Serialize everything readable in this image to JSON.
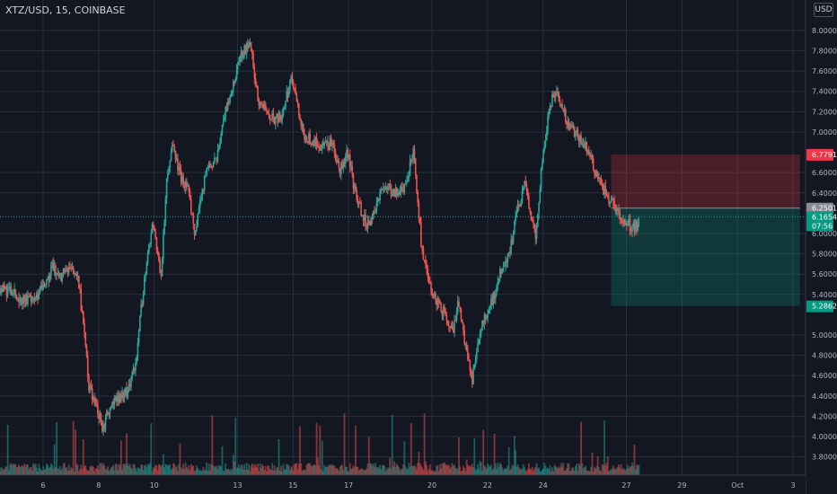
{
  "header": {
    "title": "XTZ/USD, 15, COINBASE",
    "currency": "USD"
  },
  "colors": {
    "background": "#131722",
    "grid": "#2a2e39",
    "text": "#b2b5be",
    "up": "#26a69a",
    "down": "#ef5350",
    "stop_zone": "rgba(242,54,69,0.25)",
    "target_zone": "rgba(8,153,129,0.25)",
    "stop_label": "#f23645",
    "entry_label": "#8a8d97",
    "current_label": "#089981",
    "target_label": "#089981"
  },
  "chart_data": {
    "type": "candlestick",
    "y_axis": {
      "ylim": [
        3.62,
        8.3
      ],
      "ticks": [
        "8.0000",
        "7.8000",
        "7.6000",
        "7.4000",
        "7.2000",
        "7.0000",
        "6.6000",
        "6.4000",
        "6.0000",
        "5.8000",
        "5.6000",
        "5.4000",
        "5.0000",
        "4.8000",
        "4.6000",
        "4.4000",
        "4.2000",
        "4.0000",
        "3.8000"
      ],
      "tick_values": [
        8.0,
        7.8,
        7.6,
        7.4,
        7.2,
        7.0,
        6.6,
        6.4,
        6.0,
        5.8,
        5.6,
        5.4,
        5.0,
        4.8,
        4.6,
        4.4,
        4.2,
        4.0,
        3.8
      ]
    },
    "x_axis": {
      "xlim": [
        0,
        29
      ],
      "ticks": [
        "6",
        "8",
        "10",
        "13",
        "15",
        "17",
        "20",
        "22",
        "24",
        "27",
        "29",
        "Oct",
        "3"
      ],
      "tick_values": [
        1.55,
        3.55,
        5.55,
        8.55,
        10.55,
        12.55,
        15.55,
        17.55,
        19.55,
        22.55,
        24.55,
        26.55,
        28.55
      ]
    },
    "price_path": [
      [
        0.0,
        5.47
      ],
      [
        0.4,
        5.42
      ],
      [
        0.8,
        5.35
      ],
      [
        1.2,
        5.38
      ],
      [
        1.6,
        5.45
      ],
      [
        1.9,
        5.68
      ],
      [
        2.2,
        5.58
      ],
      [
        2.5,
        5.66
      ],
      [
        2.8,
        5.6
      ],
      [
        3.0,
        5.1
      ],
      [
        3.2,
        4.5
      ],
      [
        3.5,
        4.3
      ],
      [
        3.7,
        4.05
      ],
      [
        3.9,
        4.25
      ],
      [
        4.3,
        4.4
      ],
      [
        4.6,
        4.45
      ],
      [
        4.9,
        4.75
      ],
      [
        5.1,
        5.3
      ],
      [
        5.3,
        5.8
      ],
      [
        5.5,
        6.1
      ],
      [
        5.8,
        5.6
      ],
      [
        6.0,
        6.55
      ],
      [
        6.2,
        6.85
      ],
      [
        6.5,
        6.55
      ],
      [
        6.8,
        6.4
      ],
      [
        7.0,
        6.0
      ],
      [
        7.2,
        6.3
      ],
      [
        7.5,
        6.7
      ],
      [
        7.8,
        6.7
      ],
      [
        8.0,
        7.1
      ],
      [
        8.3,
        7.35
      ],
      [
        8.6,
        7.7
      ],
      [
        9.0,
        7.9
      ],
      [
        9.3,
        7.3
      ],
      [
        9.6,
        7.2
      ],
      [
        9.9,
        7.1
      ],
      [
        10.2,
        7.2
      ],
      [
        10.5,
        7.55
      ],
      [
        10.8,
        7.1
      ],
      [
        11.0,
        6.95
      ],
      [
        11.3,
        6.9
      ],
      [
        11.6,
        6.85
      ],
      [
        12.0,
        6.9
      ],
      [
        12.2,
        6.6
      ],
      [
        12.5,
        6.8
      ],
      [
        12.8,
        6.4
      ],
      [
        13.0,
        6.2
      ],
      [
        13.3,
        6.05
      ],
      [
        13.6,
        6.35
      ],
      [
        13.9,
        6.45
      ],
      [
        14.3,
        6.4
      ],
      [
        14.5,
        6.4
      ],
      [
        14.9,
        6.8
      ],
      [
        15.0,
        6.45
      ],
      [
        15.2,
        5.8
      ],
      [
        15.5,
        5.45
      ],
      [
        15.8,
        5.3
      ],
      [
        16.0,
        5.2
      ],
      [
        16.3,
        5.05
      ],
      [
        16.5,
        5.3
      ],
      [
        16.8,
        4.85
      ],
      [
        17.0,
        4.55
      ],
      [
        17.2,
        4.95
      ],
      [
        17.5,
        5.2
      ],
      [
        17.8,
        5.4
      ],
      [
        18.0,
        5.6
      ],
      [
        18.3,
        5.75
      ],
      [
        18.6,
        6.2
      ],
      [
        18.9,
        6.5
      ],
      [
        19.1,
        6.2
      ],
      [
        19.3,
        5.95
      ],
      [
        19.5,
        6.65
      ],
      [
        19.8,
        7.3
      ],
      [
        20.1,
        7.35
      ],
      [
        20.4,
        7.1
      ],
      [
        20.8,
        6.95
      ],
      [
        21.2,
        6.8
      ],
      [
        21.6,
        6.5
      ],
      [
        22.0,
        6.3
      ],
      [
        22.4,
        6.15
      ],
      [
        22.8,
        6.05
      ],
      [
        23.0,
        6.1
      ]
    ],
    "seed": 11,
    "volume_ylim": [
      0,
      1
    ],
    "position": {
      "stop": 6.7791,
      "entry": 6.2501,
      "current": 6.1654,
      "target": 5.2862,
      "x_start": 22.0,
      "x_end": 28.8
    },
    "price_labels": {
      "stop": "6.7791",
      "entry": "6.2501",
      "current": "6.1654",
      "countdown": "07:56",
      "target": "5.2862"
    }
  }
}
